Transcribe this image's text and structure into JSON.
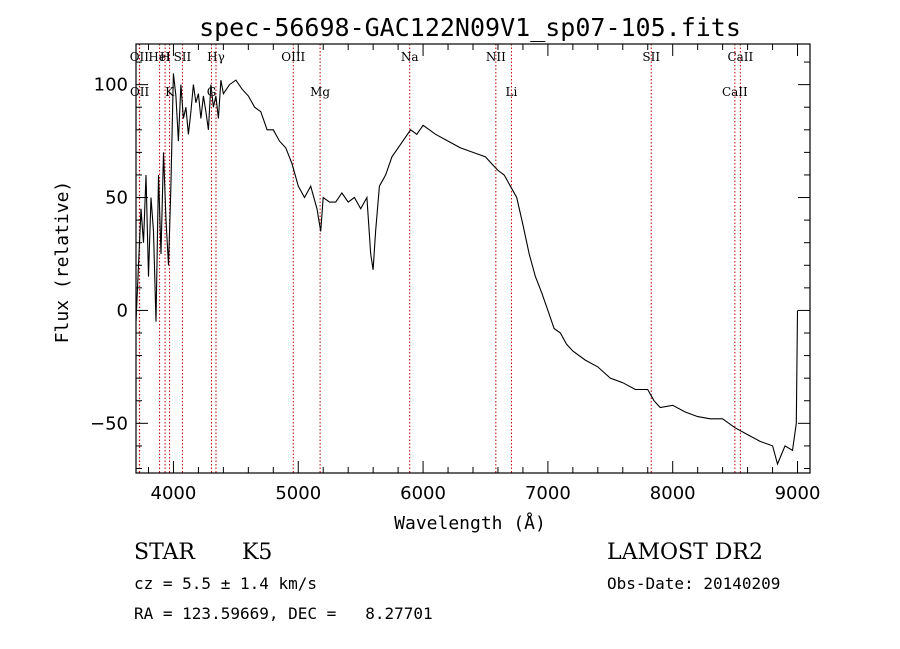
{
  "chart_data": {
    "type": "line",
    "title": "spec-56698-GAC122N09V1_sp07-105.fits",
    "xlabel": "Wavelength (Å)",
    "ylabel": "Flux (relative)",
    "xlim": [
      3700,
      9100
    ],
    "ylim": [
      -72,
      118
    ],
    "xticks": [
      "4000",
      "5000",
      "6000",
      "7000",
      "8000",
      "9000"
    ],
    "yticks": [
      "−50",
      "0",
      "50",
      "100"
    ],
    "series": [
      {
        "x": [
          3700,
          3720,
          3740,
          3760,
          3780,
          3800,
          3820,
          3840,
          3860,
          3880,
          3900,
          3920,
          3940,
          3960,
          3980,
          4000,
          4020,
          4040,
          4060,
          4080,
          4100,
          4120,
          4140,
          4160,
          4180,
          4200,
          4220,
          4240,
          4260,
          4280,
          4300,
          4320,
          4340,
          4360,
          4380,
          4400,
          4450,
          4500,
          4550,
          4600,
          4650,
          4700,
          4750,
          4800,
          4850,
          4900,
          4950,
          5000,
          5050,
          5100,
          5150,
          5180,
          5200,
          5250,
          5300,
          5350,
          5400,
          5450,
          5500,
          5550,
          5580,
          5600,
          5620,
          5650,
          5700,
          5750,
          5800,
          5850,
          5900,
          5950,
          6000,
          6100,
          6200,
          6300,
          6400,
          6500,
          6550,
          6600,
          6650,
          6700,
          6750,
          6800,
          6850,
          6900,
          6950,
          7000,
          7050,
          7100,
          7150,
          7200,
          7300,
          7400,
          7500,
          7600,
          7700,
          7800,
          7850,
          7900,
          8000,
          8100,
          8200,
          8300,
          8400,
          8500,
          8600,
          8700,
          8800,
          8840,
          8900,
          8960,
          8990,
          9000
        ],
        "y": [
          -5,
          20,
          45,
          30,
          60,
          15,
          50,
          35,
          -5,
          60,
          25,
          70,
          40,
          20,
          55,
          105,
          95,
          75,
          100,
          85,
          90,
          78,
          88,
          100,
          92,
          96,
          85,
          95,
          88,
          80,
          100,
          90,
          95,
          85,
          102,
          96,
          100,
          102,
          98,
          95,
          90,
          88,
          80,
          80,
          75,
          72,
          65,
          55,
          50,
          55,
          45,
          35,
          50,
          48,
          48,
          52,
          48,
          50,
          45,
          50,
          25,
          18,
          35,
          55,
          60,
          68,
          72,
          76,
          80,
          78,
          82,
          78,
          75,
          72,
          70,
          68,
          65,
          62,
          60,
          55,
          50,
          38,
          25,
          15,
          8,
          0,
          -8,
          -10,
          -15,
          -18,
          -22,
          -25,
          -30,
          -32,
          -35,
          -35,
          -40,
          -43,
          -42,
          -45,
          -47,
          -48,
          -48,
          -52,
          -55,
          -58,
          -60,
          -68,
          -60,
          -62,
          -50,
          0
        ]
      }
    ],
    "lines": [
      {
        "name": "OII",
        "x": 3727,
        "row": "top"
      },
      {
        "name": "OII",
        "x": 3729,
        "row": "bottom"
      },
      {
        "name": "HeI",
        "x": 3889,
        "row": "top"
      },
      {
        "name": "H",
        "x": 3933,
        "row": "top"
      },
      {
        "name": "K",
        "x": 3969,
        "row": "bottom"
      },
      {
        "name": "SII",
        "x": 4072,
        "row": "top"
      },
      {
        "name": "Hγ",
        "x": 4341,
        "row": "top"
      },
      {
        "name": "G",
        "x": 4305,
        "row": "bottom"
      },
      {
        "name": "OIII",
        "x": 4960,
        "row": "top"
      },
      {
        "name": "Mg",
        "x": 5175,
        "row": "bottom"
      },
      {
        "name": "Na",
        "x": 5893,
        "row": "top"
      },
      {
        "name": "NII",
        "x": 6583,
        "row": "top"
      },
      {
        "name": "Li",
        "x": 6708,
        "row": "bottom"
      },
      {
        "name": "SII",
        "x": 7828,
        "row": "top"
      },
      {
        "name": "CaII",
        "x": 8542,
        "row": "top"
      },
      {
        "name": "CaII",
        "x": 8498,
        "row": "bottom"
      }
    ],
    "colors": {
      "spectrum": "#000000",
      "lines": "#c00000",
      "axes": "#000000"
    }
  },
  "info": {
    "class": "STAR",
    "subclass": "K5",
    "survey": "LAMOST DR2",
    "cz": "cz = 5.5 ± 1.4 km/s",
    "obs_date": "Obs-Date: 20140209",
    "coords": "RA = 123.59669, DEC =   8.27701"
  }
}
